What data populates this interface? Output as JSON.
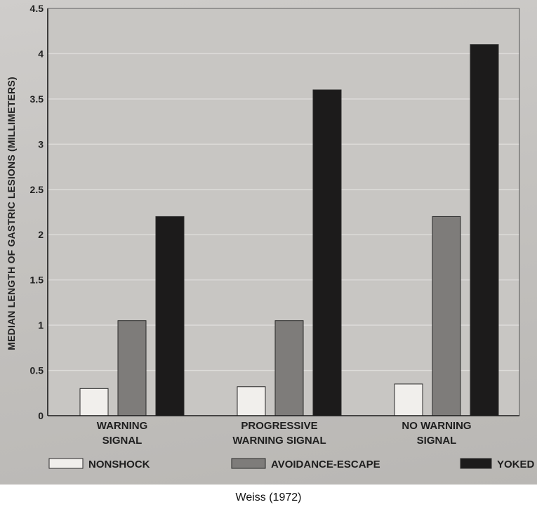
{
  "colors": {
    "nonshock": "#f1efec",
    "avoidance": "#7e7c7a",
    "yoked": "#1c1b1b",
    "plot_bg": "#c8c6c3",
    "grid": "#dedcda"
  },
  "caption": "Weiss (1972)",
  "chart_data": {
    "type": "bar",
    "title": "",
    "xlabel": "",
    "ylabel": "MEDIAN LENGTH OF GASTRIC LESIONS (MILLIMETERS)",
    "ylim": [
      0,
      4.5
    ],
    "yticks": [
      "0",
      "0.5",
      "1",
      "1.5",
      "2",
      "2.5",
      "3",
      "3.5",
      "4",
      "4.5"
    ],
    "grid": true,
    "legend_position": "bottom",
    "categories": [
      [
        "WARNING",
        "SIGNAL"
      ],
      [
        "PROGRESSIVE",
        "WARNING SIGNAL"
      ],
      [
        "NO WARNING",
        "SIGNAL"
      ]
    ],
    "series": [
      {
        "name": "NONSHOCK",
        "color_key": "nonshock",
        "values": [
          0.3,
          0.32,
          0.35
        ]
      },
      {
        "name": "AVOIDANCE-ESCAPE",
        "color_key": "avoidance",
        "values": [
          1.05,
          1.05,
          2.2
        ]
      },
      {
        "name": "YOKED",
        "color_key": "yoked",
        "values": [
          2.2,
          3.6,
          4.1
        ]
      }
    ]
  }
}
